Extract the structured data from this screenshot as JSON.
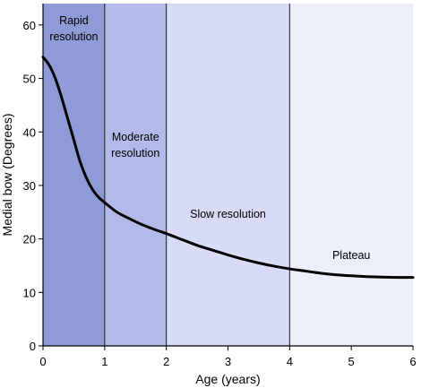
{
  "chart_data": {
    "type": "line",
    "title": "",
    "xlabel": "Age (years)",
    "ylabel": "Medial bow (Degrees)",
    "xlim": [
      0,
      6
    ],
    "ylim": [
      0,
      64
    ],
    "x_ticks": [
      "0",
      "1",
      "2",
      "3",
      "4",
      "5",
      "6"
    ],
    "y_ticks": [
      "0",
      "10",
      "20",
      "30",
      "40",
      "50",
      "60"
    ],
    "grid": false,
    "legend": "none",
    "zones": [
      {
        "label_lines": [
          "Rapid",
          "resolution"
        ],
        "x_start": 0,
        "x_end": 1,
        "color": "#8e9bd7"
      },
      {
        "label_lines": [
          "Moderate",
          "resolution"
        ],
        "x_start": 1,
        "x_end": 2,
        "color": "#b3baea"
      },
      {
        "label_lines": [
          "Slow resolution"
        ],
        "x_start": 2,
        "x_end": 4,
        "color": "#d7dbf6"
      },
      {
        "label_lines": [
          "Plateau"
        ],
        "x_start": 4,
        "x_end": 6,
        "color": "#eceef9"
      }
    ],
    "series": [
      {
        "color": "#000000",
        "points": [
          [
            0.0,
            54.0
          ],
          [
            0.1,
            52.5
          ],
          [
            0.2,
            50.0
          ],
          [
            0.3,
            46.5
          ],
          [
            0.4,
            42.5
          ],
          [
            0.5,
            38.5
          ],
          [
            0.6,
            34.5
          ],
          [
            0.7,
            31.5
          ],
          [
            0.8,
            29.3
          ],
          [
            0.9,
            27.8
          ],
          [
            1.0,
            26.8
          ],
          [
            1.2,
            25.0
          ],
          [
            1.4,
            23.8
          ],
          [
            1.6,
            22.7
          ],
          [
            1.8,
            21.8
          ],
          [
            2.0,
            21.0
          ],
          [
            2.25,
            19.9
          ],
          [
            2.5,
            18.8
          ],
          [
            2.75,
            17.9
          ],
          [
            3.0,
            17.0
          ],
          [
            3.25,
            16.2
          ],
          [
            3.5,
            15.5
          ],
          [
            3.75,
            14.9
          ],
          [
            4.0,
            14.4
          ],
          [
            4.25,
            14.0
          ],
          [
            4.5,
            13.6
          ],
          [
            4.75,
            13.3
          ],
          [
            5.0,
            13.1
          ],
          [
            5.25,
            12.95
          ],
          [
            5.5,
            12.85
          ],
          [
            5.75,
            12.8
          ],
          [
            6.0,
            12.8
          ]
        ]
      }
    ]
  }
}
